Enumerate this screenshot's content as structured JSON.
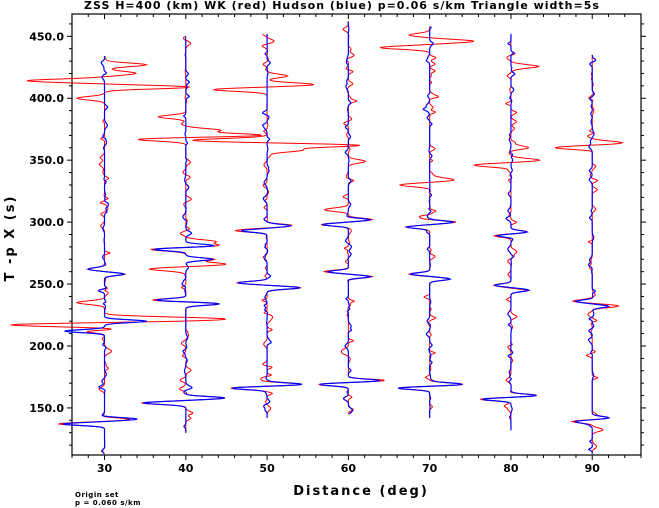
{
  "chart_data": {
    "type": "line",
    "title": "ZSS H=400 (km) WK (red) Hudson (blue) p=0.06 s/km Triangle width=5s",
    "xlabel": "Distance (deg)",
    "ylabel": "T -p X (s)",
    "xlim": [
      26,
      96
    ],
    "ylim": [
      112,
      468
    ],
    "x_ticks": [
      "30",
      "40",
      "50",
      "60",
      "70",
      "80",
      "90"
    ],
    "y_ticks": [
      "150.0",
      "200.0",
      "250.0",
      "300.0",
      "350.0",
      "400.0",
      "450.0"
    ],
    "series": [
      {
        "name": "WK",
        "color": "#ff0000"
      },
      {
        "name": "Hudson",
        "color": "#0000ff"
      }
    ],
    "traces": [
      {
        "distance": 30,
        "t_start": 113,
        "t_end": 434,
        "pulses": [
          [
            137,
            -1.3
          ],
          [
            141,
            1.0
          ],
          [
            212,
            -1.2
          ],
          [
            220,
            1.3
          ],
          [
            258,
            0.6
          ],
          [
            262,
            -0.5
          ]
        ],
        "red_pulses": [
          [
            222,
            3.2
          ],
          [
            217,
            -2.8
          ],
          [
            213,
            1.0
          ],
          [
            235,
            -0.8
          ],
          [
            409,
            2.5
          ],
          [
            414,
            -2.2
          ],
          [
            420,
            0.8
          ],
          [
            427,
            1.2
          ],
          [
            400,
            -0.8
          ]
        ]
      },
      {
        "distance": 40,
        "t_start": 130,
        "t_end": 450,
        "pulses": [
          [
            154,
            -1.3
          ],
          [
            158,
            1.2
          ],
          [
            234,
            1.0
          ],
          [
            237,
            -1.0
          ],
          [
            270,
            0.8
          ],
          [
            278,
            -1.0
          ],
          [
            281,
            0.9
          ]
        ],
        "red_pulses": [
          [
            370,
            2.2
          ],
          [
            367,
            -1.6
          ],
          [
            374,
            1.0
          ],
          [
            385,
            -0.8
          ],
          [
            266,
            1.2
          ],
          [
            262,
            -1.0
          ],
          [
            284,
            0.8
          ]
        ]
      },
      {
        "distance": 50,
        "t_start": 142,
        "t_end": 452,
        "pulses": [
          [
            166,
            -1.1
          ],
          [
            169,
            1.1
          ],
          [
            247,
            1.0
          ],
          [
            251,
            -0.9
          ],
          [
            293,
            -0.8
          ],
          [
            297,
            0.7
          ]
        ],
        "red_pulses": [
          [
            362,
            2.8
          ],
          [
            366,
            -2.2
          ],
          [
            358,
            1.0
          ],
          [
            407,
            -1.6
          ],
          [
            411,
            1.4
          ],
          [
            418,
            0.6
          ]
        ]
      },
      {
        "distance": 60,
        "t_start": 145,
        "t_end": 462,
        "pulses": [
          [
            169,
            -0.9
          ],
          [
            172,
            1.0
          ],
          [
            256,
            0.7
          ],
          [
            260,
            -0.7
          ],
          [
            298,
            -0.8
          ],
          [
            302,
            0.7
          ]
        ],
        "red_pulses": [
          [
            310,
            -0.7
          ],
          [
            349,
            0.5
          ]
        ]
      },
      {
        "distance": 70,
        "t_start": 142,
        "t_end": 458,
        "pulses": [
          [
            166,
            -1.0
          ],
          [
            169,
            1.0
          ],
          [
            254,
            0.6
          ],
          [
            258,
            -0.6
          ],
          [
            296,
            -0.7
          ],
          [
            300,
            0.7
          ]
        ],
        "red_pulses": [
          [
            330,
            -0.9
          ],
          [
            334,
            0.7
          ],
          [
            441,
            -1.5
          ],
          [
            446,
            1.3
          ],
          [
            451,
            -0.6
          ]
        ]
      },
      {
        "distance": 80,
        "t_start": 132,
        "t_end": 452,
        "pulses": [
          [
            157,
            -0.9
          ],
          [
            160,
            0.8
          ],
          [
            245,
            0.5
          ],
          [
            249,
            -0.5
          ],
          [
            289,
            -0.5
          ],
          [
            292,
            0.5
          ]
        ],
        "red_pulses": [
          [
            346,
            -1.1
          ],
          [
            350,
            0.8
          ],
          [
            360,
            0.5
          ],
          [
            426,
            0.6
          ]
        ]
      },
      {
        "distance": 90,
        "t_start": 113,
        "t_end": 435,
        "pulses": [
          [
            139,
            -0.6
          ],
          [
            142,
            0.5
          ],
          [
            232,
            0.5
          ],
          [
            236,
            -0.5
          ]
        ],
        "red_pulses": [
          [
            360,
            -1.1
          ],
          [
            364,
            0.9
          ],
          [
            233,
            0.4
          ]
        ]
      }
    ]
  },
  "footer": {
    "line1": "Origin set",
    "line2": "p = 0.060 s/km"
  }
}
